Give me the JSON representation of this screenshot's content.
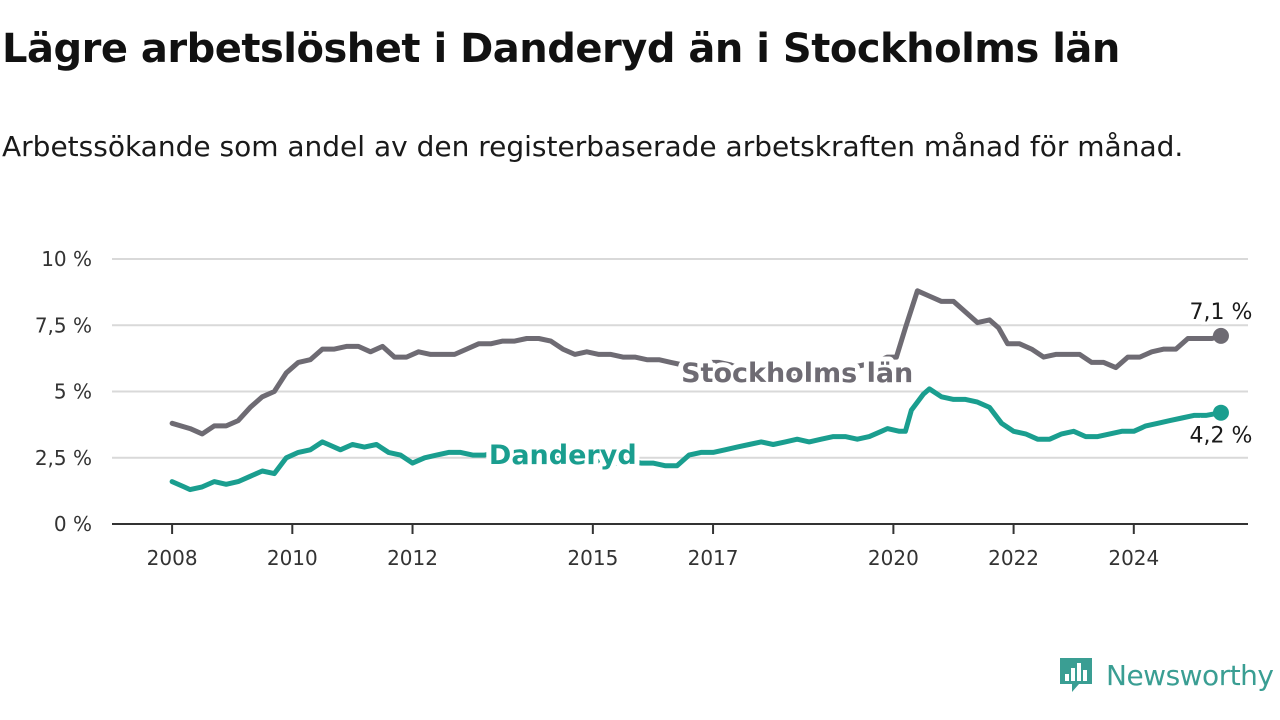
{
  "title": "Lägre arbetslöshet i Danderyd än i Stockholms län",
  "subtitle": "Arbetssökande som andel av den registerbaserade arbetskraften månad för månad.",
  "brand": {
    "name": "Newsworthy",
    "icon": "newsworthy-logo-icon",
    "color": "#3a9e93"
  },
  "chart_data": {
    "type": "line",
    "ylim": [
      0,
      10
    ],
    "yticks": [
      {
        "value": 0,
        "label": "0 %"
      },
      {
        "value": 2.5,
        "label": "2,5 %"
      },
      {
        "value": 5,
        "label": "5 %"
      },
      {
        "value": 7.5,
        "label": "7,5 %"
      },
      {
        "value": 10,
        "label": "10 %"
      }
    ],
    "xlim": [
      2007,
      2025.9
    ],
    "xticks": [
      {
        "value": 2008,
        "label": "2008"
      },
      {
        "value": 2010,
        "label": "2010"
      },
      {
        "value": 2012,
        "label": "2012"
      },
      {
        "value": 2015,
        "label": "2015"
      },
      {
        "value": 2017,
        "label": "2017"
      },
      {
        "value": 2020,
        "label": "2020"
      },
      {
        "value": 2022,
        "label": "2022"
      },
      {
        "value": 2024,
        "label": "2024"
      }
    ],
    "grid": true,
    "series": [
      {
        "name": "Stockholms län",
        "color": "#6e6b73",
        "end_label": "7,1 %",
        "points": [
          [
            2008.0,
            3.8
          ],
          [
            2008.3,
            3.6
          ],
          [
            2008.5,
            3.4
          ],
          [
            2008.7,
            3.7
          ],
          [
            2008.9,
            3.7
          ],
          [
            2009.1,
            3.9
          ],
          [
            2009.3,
            4.4
          ],
          [
            2009.5,
            4.8
          ],
          [
            2009.7,
            5.0
          ],
          [
            2009.9,
            5.7
          ],
          [
            2010.1,
            6.1
          ],
          [
            2010.3,
            6.2
          ],
          [
            2010.5,
            6.6
          ],
          [
            2010.7,
            6.6
          ],
          [
            2010.9,
            6.7
          ],
          [
            2011.1,
            6.7
          ],
          [
            2011.3,
            6.5
          ],
          [
            2011.5,
            6.7
          ],
          [
            2011.7,
            6.3
          ],
          [
            2011.9,
            6.3
          ],
          [
            2012.1,
            6.5
          ],
          [
            2012.3,
            6.4
          ],
          [
            2012.5,
            6.4
          ],
          [
            2012.7,
            6.4
          ],
          [
            2012.9,
            6.6
          ],
          [
            2013.1,
            6.8
          ],
          [
            2013.3,
            6.8
          ],
          [
            2013.5,
            6.9
          ],
          [
            2013.7,
            6.9
          ],
          [
            2013.9,
            7.0
          ],
          [
            2014.1,
            7.0
          ],
          [
            2014.3,
            6.9
          ],
          [
            2014.5,
            6.6
          ],
          [
            2014.7,
            6.4
          ],
          [
            2014.9,
            6.5
          ],
          [
            2015.1,
            6.4
          ],
          [
            2015.3,
            6.4
          ],
          [
            2015.5,
            6.3
          ],
          [
            2015.7,
            6.3
          ],
          [
            2015.9,
            6.2
          ],
          [
            2016.1,
            6.2
          ],
          [
            2016.3,
            6.1
          ],
          [
            2016.5,
            6.0
          ],
          [
            2016.7,
            6.0
          ],
          [
            2016.9,
            6.1
          ],
          [
            2017.1,
            6.1
          ],
          [
            2017.3,
            6.0
          ],
          [
            2017.5,
            5.8
          ],
          [
            2017.7,
            5.7
          ],
          [
            2017.9,
            5.6
          ],
          [
            2018.1,
            5.6
          ],
          [
            2018.3,
            5.6
          ],
          [
            2018.5,
            5.7
          ],
          [
            2018.7,
            5.6
          ],
          [
            2018.9,
            5.6
          ],
          [
            2019.1,
            5.8
          ],
          [
            2019.3,
            5.9
          ],
          [
            2019.5,
            6.0
          ],
          [
            2019.7,
            6.1
          ],
          [
            2019.9,
            6.3
          ],
          [
            2020.05,
            6.3
          ],
          [
            2020.2,
            7.4
          ],
          [
            2020.4,
            8.8
          ],
          [
            2020.6,
            8.6
          ],
          [
            2020.8,
            8.4
          ],
          [
            2021.0,
            8.4
          ],
          [
            2021.2,
            8.0
          ],
          [
            2021.4,
            7.6
          ],
          [
            2021.6,
            7.7
          ],
          [
            2021.75,
            7.4
          ],
          [
            2021.9,
            6.8
          ],
          [
            2022.1,
            6.8
          ],
          [
            2022.3,
            6.6
          ],
          [
            2022.5,
            6.3
          ],
          [
            2022.7,
            6.4
          ],
          [
            2022.9,
            6.4
          ],
          [
            2023.1,
            6.4
          ],
          [
            2023.3,
            6.1
          ],
          [
            2023.5,
            6.1
          ],
          [
            2023.7,
            5.9
          ],
          [
            2023.9,
            6.3
          ],
          [
            2024.1,
            6.3
          ],
          [
            2024.3,
            6.5
          ],
          [
            2024.5,
            6.6
          ],
          [
            2024.7,
            6.6
          ],
          [
            2024.9,
            7.0
          ],
          [
            2025.1,
            7.0
          ],
          [
            2025.3,
            7.0
          ],
          [
            2025.45,
            7.1
          ]
        ]
      },
      {
        "name": "Danderyd",
        "color": "#1a9e8f",
        "end_label": "4,2 %",
        "points": [
          [
            2008.0,
            1.6
          ],
          [
            2008.2,
            1.4
          ],
          [
            2008.3,
            1.3
          ],
          [
            2008.5,
            1.4
          ],
          [
            2008.7,
            1.6
          ],
          [
            2008.9,
            1.5
          ],
          [
            2009.1,
            1.6
          ],
          [
            2009.3,
            1.8
          ],
          [
            2009.5,
            2.0
          ],
          [
            2009.7,
            1.9
          ],
          [
            2009.9,
            2.5
          ],
          [
            2010.1,
            2.7
          ],
          [
            2010.3,
            2.8
          ],
          [
            2010.5,
            3.1
          ],
          [
            2010.6,
            3.0
          ],
          [
            2010.8,
            2.8
          ],
          [
            2011.0,
            3.0
          ],
          [
            2011.2,
            2.9
          ],
          [
            2011.4,
            3.0
          ],
          [
            2011.6,
            2.7
          ],
          [
            2011.8,
            2.6
          ],
          [
            2012.0,
            2.3
          ],
          [
            2012.2,
            2.5
          ],
          [
            2012.4,
            2.6
          ],
          [
            2012.6,
            2.7
          ],
          [
            2012.8,
            2.7
          ],
          [
            2013.0,
            2.6
          ],
          [
            2013.2,
            2.6
          ],
          [
            2013.4,
            2.7
          ],
          [
            2013.6,
            2.7
          ],
          [
            2013.8,
            2.7
          ],
          [
            2014.0,
            2.6
          ],
          [
            2014.2,
            2.6
          ],
          [
            2014.4,
            2.6
          ],
          [
            2014.6,
            2.5
          ],
          [
            2014.8,
            2.5
          ],
          [
            2015.0,
            2.4
          ],
          [
            2015.2,
            2.3
          ],
          [
            2015.4,
            2.3
          ],
          [
            2015.6,
            2.4
          ],
          [
            2015.8,
            2.3
          ],
          [
            2016.0,
            2.3
          ],
          [
            2016.2,
            2.2
          ],
          [
            2016.4,
            2.2
          ],
          [
            2016.6,
            2.6
          ],
          [
            2016.8,
            2.7
          ],
          [
            2017.0,
            2.7
          ],
          [
            2017.2,
            2.8
          ],
          [
            2017.4,
            2.9
          ],
          [
            2017.6,
            3.0
          ],
          [
            2017.8,
            3.1
          ],
          [
            2018.0,
            3.0
          ],
          [
            2018.2,
            3.1
          ],
          [
            2018.4,
            3.2
          ],
          [
            2018.6,
            3.1
          ],
          [
            2018.8,
            3.2
          ],
          [
            2019.0,
            3.3
          ],
          [
            2019.2,
            3.3
          ],
          [
            2019.4,
            3.2
          ],
          [
            2019.6,
            3.3
          ],
          [
            2019.8,
            3.5
          ],
          [
            2019.9,
            3.6
          ],
          [
            2020.1,
            3.5
          ],
          [
            2020.2,
            3.5
          ],
          [
            2020.3,
            4.3
          ],
          [
            2020.5,
            4.9
          ],
          [
            2020.6,
            5.1
          ],
          [
            2020.8,
            4.8
          ],
          [
            2021.0,
            4.7
          ],
          [
            2021.2,
            4.7
          ],
          [
            2021.4,
            4.6
          ],
          [
            2021.6,
            4.4
          ],
          [
            2021.8,
            3.8
          ],
          [
            2022.0,
            3.5
          ],
          [
            2022.2,
            3.4
          ],
          [
            2022.4,
            3.2
          ],
          [
            2022.6,
            3.2
          ],
          [
            2022.8,
            3.4
          ],
          [
            2023.0,
            3.5
          ],
          [
            2023.2,
            3.3
          ],
          [
            2023.4,
            3.3
          ],
          [
            2023.6,
            3.4
          ],
          [
            2023.8,
            3.5
          ],
          [
            2024.0,
            3.5
          ],
          [
            2024.2,
            3.7
          ],
          [
            2024.4,
            3.8
          ],
          [
            2024.6,
            3.9
          ],
          [
            2024.8,
            4.0
          ],
          [
            2025.0,
            4.1
          ],
          [
            2025.2,
            4.1
          ],
          [
            2025.45,
            4.2
          ]
        ]
      }
    ]
  }
}
